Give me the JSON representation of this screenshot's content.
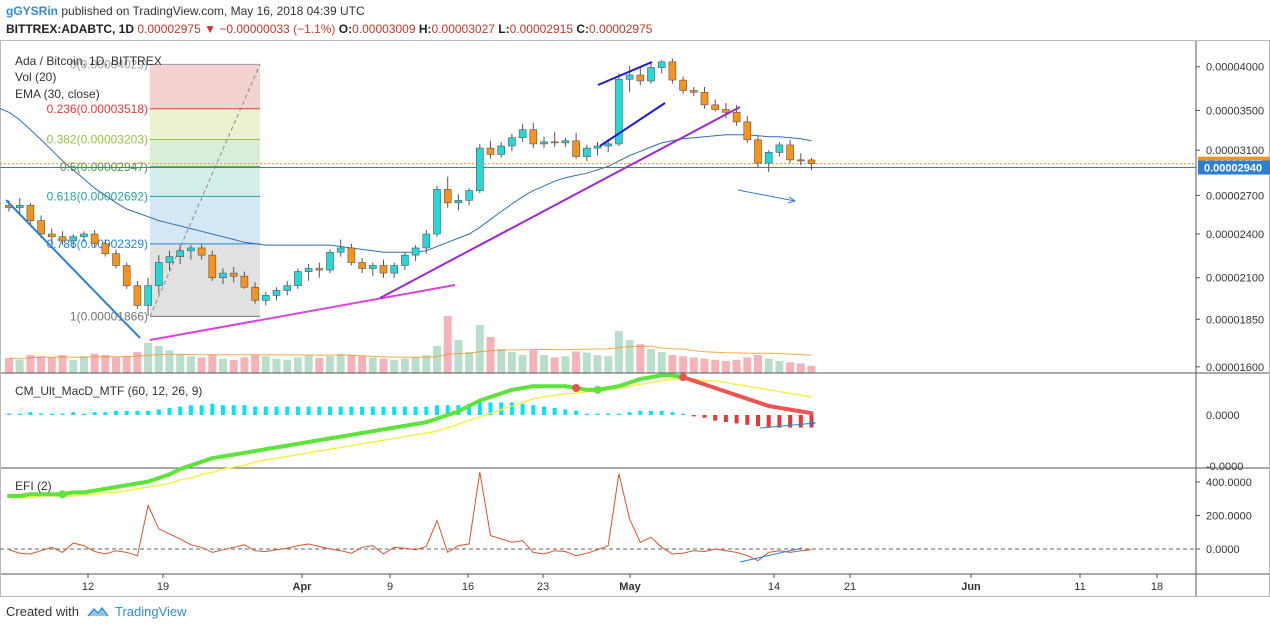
{
  "header": {
    "user": "gGYSRin",
    "published": "published on TradingView.com, May 16, 2018 04:39 UTC",
    "symbol": "BITTREX:ADABTC, 1D",
    "last": "0.00002975",
    "change": "−0.00000033 (−1.1%)",
    "o_label": "O:",
    "o": "0.00003009",
    "h_label": "H:",
    "h": "0.00003027",
    "l_label": "L:",
    "l": "0.00002915",
    "c_label": "C:",
    "c": "0.00002975"
  },
  "legend": {
    "title": "Ada / Bitcoin, 1D, BITTREX",
    "vol": "Vol (20)",
    "ema": "EMA (30, close)",
    "macd": "CM_Ult_MacD_MTF (60, 12, 26, 9)",
    "efi": "EFI (2)"
  },
  "fib": [
    {
      "label": "0(0.00004029)",
      "color": "#9e9e9e"
    },
    {
      "label": "0.236(0.00003518)",
      "color": "#e53935"
    },
    {
      "label": "0.382(0.00003203)",
      "color": "#9bbf3b"
    },
    {
      "label": "0.5(0.00002947)",
      "color": "#43a047"
    },
    {
      "label": "0.618(0.00002692)",
      "color": "#26a69a"
    },
    {
      "label": "0.786(0.00002329)",
      "color": "#1e88e5"
    },
    {
      "label": "1(0.00001866)",
      "color": "#757575"
    }
  ],
  "price_axis": [
    {
      "label": "0.00004000",
      "value": 4e-05
    },
    {
      "label": "0.00003500",
      "value": 3.5e-05
    },
    {
      "label": "0.00003100",
      "value": 3.1e-05
    },
    {
      "label": "0.00002700",
      "value": 2.7e-05
    },
    {
      "label": "0.00002400",
      "value": 2.4e-05
    },
    {
      "label": "0.00002100",
      "value": 2.1e-05
    },
    {
      "label": "0.00001850",
      "value": 1.85e-05
    },
    {
      "label": "0.00001600",
      "value": 1.6e-05
    }
  ],
  "price_tags": [
    {
      "label": "0.00002975",
      "value": 2.975e-05,
      "color": "#f7931a"
    },
    {
      "label": "0.00002940",
      "value": 2.94e-05,
      "color": "#2d7fd3"
    }
  ],
  "macd_axis": [
    {
      "label": "0.0000"
    },
    {
      "label": "-0.0000"
    }
  ],
  "efi_axis": [
    {
      "label": "400.0000",
      "value": 400
    },
    {
      "label": "200.0000",
      "value": 200
    },
    {
      "label": "0.0000",
      "value": 0
    }
  ],
  "time_axis": [
    "12",
    "19",
    "Apr",
    "9",
    "16",
    "23",
    "May",
    "14",
    "21",
    "Jun",
    "11",
    "18"
  ],
  "footer": {
    "created": "Created with",
    "brand": "TradingView"
  },
  "colors": {
    "up": "#26d7d7",
    "down": "#f7931a",
    "ema": "#2d6fb5",
    "vol_up": "#b9dfcc",
    "vol_down": "#f4b3b8"
  },
  "chart_data": {
    "type": "candlestick",
    "title": "Ada / Bitcoin, 1D, BITTREX",
    "y_scale": "log",
    "ylim": [
      1.57e-05,
      4.34e-05
    ],
    "candles": [
      [
        2.62e-05,
        2.66e-05,
        2.57e-05,
        2.6e-05
      ],
      [
        2.6e-05,
        2.68e-05,
        2.56e-05,
        2.62e-05
      ],
      [
        2.62e-05,
        2.64e-05,
        2.47e-05,
        2.5e-05
      ],
      [
        2.5e-05,
        2.54e-05,
        2.37e-05,
        2.4e-05
      ],
      [
        2.4e-05,
        2.44e-05,
        2.33e-05,
        2.38e-05
      ],
      [
        2.38e-05,
        2.42e-05,
        2.32e-05,
        2.35e-05
      ],
      [
        2.35e-05,
        2.4e-05,
        2.3e-05,
        2.38e-05
      ],
      [
        2.38e-05,
        2.42e-05,
        2.34e-05,
        2.4e-05
      ],
      [
        2.4e-05,
        2.43e-05,
        2.31e-05,
        2.33e-05
      ],
      [
        2.33e-05,
        2.36e-05,
        2.24e-05,
        2.26e-05
      ],
      [
        2.26e-05,
        2.29e-05,
        2.16e-05,
        2.18e-05
      ],
      [
        2.18e-05,
        2.2e-05,
        2.03e-05,
        2.05e-05
      ],
      [
        2.05e-05,
        2.08e-05,
        1.91e-05,
        1.93e-05
      ],
      [
        1.93e-05,
        2.1e-05,
        1.87e-05,
        2.05e-05
      ],
      [
        2.05e-05,
        2.25e-05,
        2e-05,
        2.2e-05
      ],
      [
        2.2e-05,
        2.28e-05,
        2.15e-05,
        2.24e-05
      ],
      [
        2.24e-05,
        2.32e-05,
        2.19e-05,
        2.28e-05
      ],
      [
        2.28e-05,
        2.32e-05,
        2.22e-05,
        2.3e-05
      ],
      [
        2.3e-05,
        2.33e-05,
        2.22e-05,
        2.25e-05
      ],
      [
        2.25e-05,
        2.28e-05,
        2.08e-05,
        2.1e-05
      ],
      [
        2.1e-05,
        2.16e-05,
        2.06e-05,
        2.13e-05
      ],
      [
        2.13e-05,
        2.17e-05,
        2.07e-05,
        2.11e-05
      ],
      [
        2.11e-05,
        2.14e-05,
        2.03e-05,
        2.04e-05
      ],
      [
        2.04e-05,
        2.07e-05,
        1.94e-05,
        1.96e-05
      ],
      [
        1.96e-05,
        2.01e-05,
        1.93e-05,
        1.99e-05
      ],
      [
        1.99e-05,
        2.04e-05,
        1.96e-05,
        2.02e-05
      ],
      [
        2.02e-05,
        2.08e-05,
        1.99e-05,
        2.05e-05
      ],
      [
        2.05e-05,
        2.16e-05,
        2.03e-05,
        2.14e-05
      ],
      [
        2.14e-05,
        2.19e-05,
        2.08e-05,
        2.16e-05
      ],
      [
        2.16e-05,
        2.2e-05,
        2.1e-05,
        2.15e-05
      ],
      [
        2.15e-05,
        2.29e-05,
        2.13e-05,
        2.27e-05
      ],
      [
        2.27e-05,
        2.36e-05,
        2.24e-05,
        2.3e-05
      ],
      [
        2.3e-05,
        2.33e-05,
        2.18e-05,
        2.2e-05
      ],
      [
        2.2e-05,
        2.23e-05,
        2.13e-05,
        2.16e-05
      ],
      [
        2.16e-05,
        2.2e-05,
        2.11e-05,
        2.18e-05
      ],
      [
        2.18e-05,
        2.22e-05,
        2.1e-05,
        2.13e-05
      ],
      [
        2.13e-05,
        2.2e-05,
        2.1e-05,
        2.18e-05
      ],
      [
        2.18e-05,
        2.27e-05,
        2.15e-05,
        2.25e-05
      ],
      [
        2.25e-05,
        2.32e-05,
        2.21e-05,
        2.3e-05
      ],
      [
        2.3e-05,
        2.43e-05,
        2.26e-05,
        2.4e-05
      ],
      [
        2.4e-05,
        2.78e-05,
        2.38e-05,
        2.75e-05
      ],
      [
        2.75e-05,
        2.86e-05,
        2.6e-05,
        2.64e-05
      ],
      [
        2.64e-05,
        2.71e-05,
        2.58e-05,
        2.66e-05
      ],
      [
        2.66e-05,
        2.76e-05,
        2.62e-05,
        2.74e-05
      ],
      [
        2.74e-05,
        3.16e-05,
        2.72e-05,
        3.12e-05
      ],
      [
        3.12e-05,
        3.19e-05,
        3.02e-05,
        3.06e-05
      ],
      [
        3.06e-05,
        3.18e-05,
        3.03e-05,
        3.14e-05
      ],
      [
        3.14e-05,
        3.26e-05,
        3.09e-05,
        3.22e-05
      ],
      [
        3.22e-05,
        3.36e-05,
        3.18e-05,
        3.3e-05
      ],
      [
        3.3e-05,
        3.37e-05,
        3.12e-05,
        3.16e-05
      ],
      [
        3.16e-05,
        3.23e-05,
        3.12e-05,
        3.18e-05
      ],
      [
        3.18e-05,
        3.28e-05,
        3.13e-05,
        3.17e-05
      ],
      [
        3.17e-05,
        3.22e-05,
        3.13e-05,
        3.19e-05
      ],
      [
        3.19e-05,
        3.27e-05,
        3.02e-05,
        3.04e-05
      ],
      [
        3.04e-05,
        3.15e-05,
        3e-05,
        3.12e-05
      ],
      [
        3.12e-05,
        3.18e-05,
        3.05e-05,
        3.14e-05
      ],
      [
        3.14e-05,
        3.21e-05,
        3.08e-05,
        3.16e-05
      ],
      [
        3.16e-05,
        3.92e-05,
        3.14e-05,
        3.85e-05
      ],
      [
        3.85e-05,
        4.01e-05,
        3.7e-05,
        3.9e-05
      ],
      [
        3.9e-05,
        4e-05,
        3.78e-05,
        3.83e-05
      ],
      [
        3.83e-05,
        4.05e-05,
        3.8e-05,
        3.99e-05
      ],
      [
        3.99e-05,
        4.08e-05,
        3.92e-05,
        4.06e-05
      ],
      [
        4.06e-05,
        4.1e-05,
        3.8e-05,
        3.84e-05
      ],
      [
        3.84e-05,
        3.88e-05,
        3.68e-05,
        3.72e-05
      ],
      [
        3.72e-05,
        3.76e-05,
        3.66e-05,
        3.7e-05
      ],
      [
        3.7e-05,
        3.76e-05,
        3.52e-05,
        3.56e-05
      ],
      [
        3.56e-05,
        3.62e-05,
        3.49e-05,
        3.51e-05
      ],
      [
        3.51e-05,
        3.58e-05,
        3.42e-05,
        3.48e-05
      ],
      [
        3.48e-05,
        3.56e-05,
        3.34e-05,
        3.38e-05
      ],
      [
        3.38e-05,
        3.44e-05,
        3.17e-05,
        3.2e-05
      ],
      [
        3.2e-05,
        3.24e-05,
        2.94e-05,
        2.98e-05
      ],
      [
        2.98e-05,
        3.1e-05,
        2.9e-05,
        3.08e-05
      ],
      [
        3.08e-05,
        3.18e-05,
        3.04e-05,
        3.15e-05
      ],
      [
        3.15e-05,
        3.2e-05,
        2.98e-05,
        3.01e-05
      ],
      [
        3.01e-05,
        3.07e-05,
        2.96e-05,
        3e-05
      ],
      [
        3.009e-05,
        3.027e-05,
        2.915e-05,
        2.975e-05
      ]
    ],
    "ema": [
      3.48e-05,
      3.4e-05,
      3.3e-05,
      3.2e-05,
      3.1e-05,
      3e-05,
      2.92e-05,
      2.84e-05,
      2.76e-05,
      2.7e-05,
      2.64e-05,
      2.59e-05,
      2.56e-05,
      2.53e-05,
      2.5e-05,
      2.48e-05,
      2.46e-05,
      2.44e-05,
      2.42e-05,
      2.4e-05,
      2.38e-05,
      2.36e-05,
      2.34e-05,
      2.33e-05,
      2.32e-05,
      2.32e-05,
      2.32e-05,
      2.32e-05,
      2.32e-05,
      2.32e-05,
      2.32e-05,
      2.31e-05,
      2.3e-05,
      2.29e-05,
      2.28e-05,
      2.27e-05,
      2.27e-05,
      2.27e-05,
      2.27e-05,
      2.28e-05,
      2.31e-05,
      2.34e-05,
      2.37e-05,
      2.4e-05,
      2.45e-05,
      2.51e-05,
      2.57e-05,
      2.63e-05,
      2.69e-05,
      2.74e-05,
      2.78e-05,
      2.82e-05,
      2.85e-05,
      2.87e-05,
      2.89e-05,
      2.92e-05,
      2.95e-05,
      3e-05,
      3.05e-05,
      3.09e-05,
      3.13e-05,
      3.17e-05,
      3.19e-05,
      3.21e-05,
      3.22e-05,
      3.23e-05,
      3.24e-05,
      3.25e-05,
      3.25e-05,
      3.25e-05,
      3.24e-05,
      3.23e-05,
      3.23e-05,
      3.22e-05,
      3.21e-05,
      3.19e-05
    ],
    "volume_relative": [
      0.25,
      0.22,
      0.3,
      0.28,
      0.26,
      0.3,
      0.22,
      0.28,
      0.32,
      0.3,
      0.26,
      0.28,
      0.35,
      0.5,
      0.45,
      0.38,
      0.32,
      0.28,
      0.26,
      0.3,
      0.24,
      0.22,
      0.26,
      0.3,
      0.28,
      0.24,
      0.22,
      0.26,
      0.3,
      0.25,
      0.28,
      0.32,
      0.3,
      0.28,
      0.26,
      0.24,
      0.22,
      0.24,
      0.26,
      0.3,
      0.45,
      0.95,
      0.55,
      0.35,
      0.8,
      0.6,
      0.4,
      0.35,
      0.3,
      0.38,
      0.3,
      0.26,
      0.28,
      0.36,
      0.34,
      0.3,
      0.28,
      0.7,
      0.55,
      0.48,
      0.4,
      0.35,
      0.3,
      0.28,
      0.26,
      0.24,
      0.22,
      0.2,
      0.22,
      0.26,
      0.3,
      0.24,
      0.2,
      0.18,
      0.16,
      0.12
    ],
    "efi": [
      -5,
      -25,
      -30,
      -10,
      10,
      -20,
      35,
      20,
      -15,
      -30,
      -10,
      -20,
      -40,
      260,
      120,
      90,
      60,
      25,
      10,
      -20,
      -5,
      10,
      25,
      -10,
      -15,
      -5,
      5,
      20,
      30,
      15,
      0,
      -10,
      -25,
      10,
      20,
      -30,
      10,
      5,
      -5,
      15,
      170,
      -20,
      20,
      30,
      460,
      80,
      60,
      40,
      50,
      -20,
      -30,
      -10,
      -15,
      -40,
      -25,
      -5,
      20,
      450,
      180,
      40,
      70,
      10,
      -30,
      -25,
      -10,
      -15,
      0,
      -10,
      -20,
      -40,
      -70,
      -20,
      -10,
      -20,
      -10,
      -5
    ],
    "macd": [
      -0.45,
      -0.45,
      -0.44,
      -0.44,
      -0.44,
      -0.44,
      -0.43,
      -0.43,
      -0.42,
      -0.41,
      -0.4,
      -0.39,
      -0.38,
      -0.37,
      -0.35,
      -0.33,
      -0.3,
      -0.28,
      -0.26,
      -0.24,
      -0.23,
      -0.22,
      -0.21,
      -0.2,
      -0.19,
      -0.18,
      -0.17,
      -0.16,
      -0.15,
      -0.14,
      -0.13,
      -0.12,
      -0.11,
      -0.1,
      -0.09,
      -0.08,
      -0.07,
      -0.06,
      -0.05,
      -0.04,
      -0.02,
      0.0,
      0.02,
      0.05,
      0.08,
      0.1,
      0.12,
      0.14,
      0.15,
      0.16,
      0.16,
      0.16,
      0.16,
      0.15,
      0.14,
      0.14,
      0.15,
      0.16,
      0.18,
      0.2,
      0.21,
      0.22,
      0.22,
      0.21,
      0.19,
      0.17,
      0.15,
      0.13,
      0.11,
      0.09,
      0.07,
      0.05,
      0.04,
      0.03,
      0.02,
      0.01
    ],
    "macd_signal": [
      -0.46,
      -0.46,
      -0.46,
      -0.45,
      -0.45,
      -0.45,
      -0.45,
      -0.44,
      -0.44,
      -0.43,
      -0.43,
      -0.42,
      -0.41,
      -0.4,
      -0.39,
      -0.38,
      -0.36,
      -0.35,
      -0.33,
      -0.32,
      -0.3,
      -0.29,
      -0.28,
      -0.26,
      -0.25,
      -0.24,
      -0.23,
      -0.22,
      -0.21,
      -0.2,
      -0.19,
      -0.18,
      -0.17,
      -0.16,
      -0.15,
      -0.14,
      -0.13,
      -0.12,
      -0.11,
      -0.1,
      -0.09,
      -0.07,
      -0.05,
      -0.03,
      -0.01,
      0.01,
      0.03,
      0.05,
      0.07,
      0.09,
      0.1,
      0.11,
      0.12,
      0.12,
      0.13,
      0.13,
      0.14,
      0.15,
      0.16,
      0.17,
      0.18,
      0.19,
      0.2,
      0.2,
      0.2,
      0.19,
      0.19,
      0.18,
      0.17,
      0.16,
      0.15,
      0.14,
      0.13,
      0.12,
      0.11,
      0.1
    ]
  }
}
